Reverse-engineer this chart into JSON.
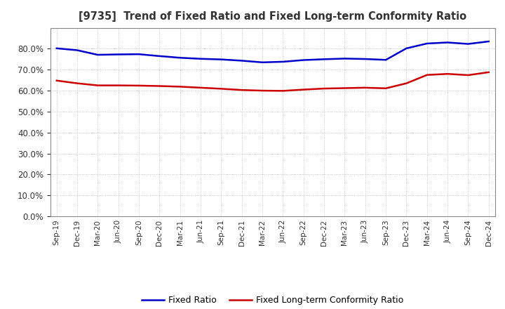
{
  "title": "[9735]  Trend of Fixed Ratio and Fixed Long-term Conformity Ratio",
  "x_labels": [
    "Sep-19",
    "Dec-19",
    "Mar-20",
    "Jun-20",
    "Sep-20",
    "Dec-20",
    "Mar-21",
    "Jun-21",
    "Sep-21",
    "Dec-21",
    "Mar-22",
    "Jun-22",
    "Sep-22",
    "Dec-22",
    "Mar-23",
    "Jun-23",
    "Sep-23",
    "Dec-23",
    "Mar-24",
    "Jun-24",
    "Sep-24",
    "Dec-24"
  ],
  "fixed_ratio": [
    80.2,
    79.3,
    77.1,
    77.3,
    77.4,
    76.5,
    75.7,
    75.2,
    74.9,
    74.3,
    73.5,
    73.8,
    74.6,
    75.0,
    75.3,
    75.1,
    74.7,
    80.2,
    82.5,
    83.0,
    82.3,
    83.5
  ],
  "fixed_lt_ratio": [
    64.8,
    63.5,
    62.5,
    62.5,
    62.4,
    62.2,
    61.9,
    61.4,
    60.9,
    60.3,
    60.0,
    59.9,
    60.5,
    61.0,
    61.2,
    61.4,
    61.1,
    63.5,
    67.5,
    68.0,
    67.4,
    68.8
  ],
  "fixed_ratio_color": "#0000CC",
  "fixed_lt_ratio_color": "#CC0000",
  "ylim": [
    0,
    90
  ],
  "yticks": [
    0,
    10,
    20,
    30,
    40,
    50,
    60,
    70,
    80
  ],
  "background_color": "#FFFFFF",
  "grid_color": "#AAAAAA",
  "line_width": 1.8,
  "title_color": "#333333",
  "tick_color": "#333333"
}
